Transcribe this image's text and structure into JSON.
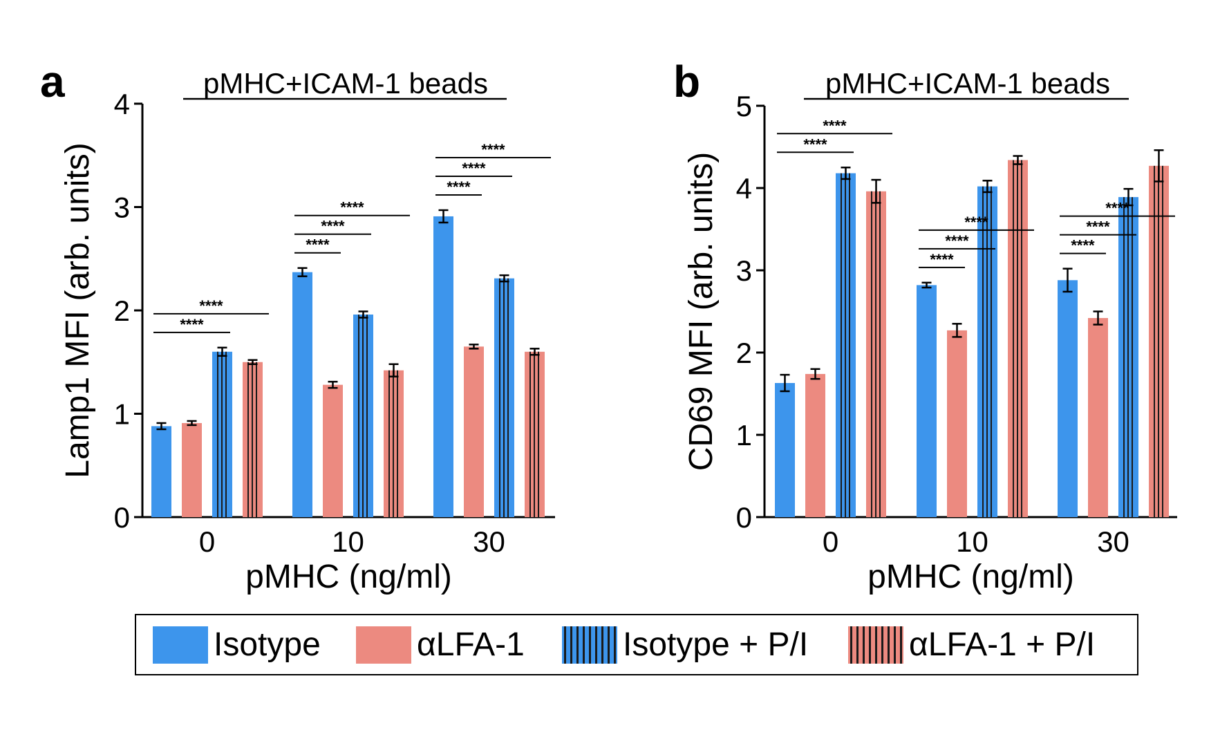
{
  "figure": {
    "colors": {
      "isotype": "#3d95ec",
      "alfa1": "#ec8a80",
      "stripe": "#1a1a1a",
      "axis": "#000000"
    },
    "legend": [
      {
        "label": "Isotype",
        "color": "#3d95ec",
        "hatched": false
      },
      {
        "label": "αLFA-1",
        "color": "#ec8a80",
        "hatched": false
      },
      {
        "label": "Isotype + P/I",
        "color": "#3d95ec",
        "hatched": true
      },
      {
        "label": "αLFA-1 + P/I",
        "color": "#ec8a80",
        "hatched": true
      }
    ]
  },
  "chart_data": [
    {
      "type": "bar",
      "panel_letter": "a",
      "title": "pMHC+ICAM-1 beads",
      "xlabel": "pMHC (ng/ml)",
      "ylabel": "Lamp1 MFI (arb. units)",
      "ylim": [
        0,
        4
      ],
      "yticks": [
        "0",
        "1",
        "2",
        "3",
        "4"
      ],
      "categories": [
        "0",
        "10",
        "30"
      ],
      "series": [
        {
          "name": "Isotype",
          "values": [
            0.88,
            2.37,
            2.91
          ],
          "errors": [
            0.03,
            0.04,
            0.06
          ]
        },
        {
          "name": "αLFA-1",
          "values": [
            0.91,
            1.28,
            1.65
          ],
          "errors": [
            0.02,
            0.03,
            0.02
          ]
        },
        {
          "name": "Isotype + P/I",
          "values": [
            1.6,
            1.96,
            2.31
          ],
          "errors": [
            0.04,
            0.03,
            0.03
          ]
        },
        {
          "name": "αLFA-1 + P/I",
          "values": [
            1.5,
            1.42,
            1.6
          ],
          "errors": [
            0.02,
            0.06,
            0.03
          ]
        }
      ],
      "significance": [
        {
          "category": "0",
          "from": "Isotype",
          "to": "Isotype + P/I",
          "label": "****"
        },
        {
          "category": "0",
          "from": "Isotype",
          "to": "αLFA-1 + P/I",
          "label": "****"
        },
        {
          "category": "10",
          "from": "Isotype",
          "to": "αLFA-1",
          "label": "****"
        },
        {
          "category": "10",
          "from": "Isotype",
          "to": "Isotype + P/I",
          "label": "****"
        },
        {
          "category": "10",
          "from": "Isotype",
          "to": "αLFA-1 + P/I",
          "label": "****"
        },
        {
          "category": "30",
          "from": "Isotype",
          "to": "αLFA-1",
          "label": "****"
        },
        {
          "category": "30",
          "from": "Isotype",
          "to": "Isotype + P/I",
          "label": "****"
        },
        {
          "category": "30",
          "from": "Isotype",
          "to": "αLFA-1 + P/I",
          "label": "****"
        }
      ]
    },
    {
      "type": "bar",
      "panel_letter": "b",
      "title": "pMHC+ICAM-1 beads",
      "xlabel": "pMHC (ng/ml)",
      "ylabel": "CD69 MFI (arb. units)",
      "ylim": [
        0,
        5
      ],
      "yticks": [
        "0",
        "1",
        "2",
        "3",
        "4",
        "5"
      ],
      "categories": [
        "0",
        "10",
        "30"
      ],
      "series": [
        {
          "name": "Isotype",
          "values": [
            1.63,
            2.82,
            2.88
          ],
          "errors": [
            0.1,
            0.03,
            0.14
          ]
        },
        {
          "name": "αLFA-1",
          "values": [
            1.74,
            2.27,
            2.42
          ],
          "errors": [
            0.06,
            0.08,
            0.08
          ]
        },
        {
          "name": "Isotype + P/I",
          "values": [
            4.18,
            4.02,
            3.89
          ],
          "errors": [
            0.07,
            0.07,
            0.1
          ]
        },
        {
          "name": "αLFA-1 + P/I",
          "values": [
            3.96,
            4.34,
            4.27
          ],
          "errors": [
            0.14,
            0.05,
            0.19
          ]
        }
      ],
      "significance": [
        {
          "category": "0",
          "from": "Isotype",
          "to": "Isotype + P/I",
          "label": "****"
        },
        {
          "category": "0",
          "from": "Isotype",
          "to": "αLFA-1 + P/I",
          "label": "****"
        },
        {
          "category": "10",
          "from": "Isotype",
          "to": "αLFA-1",
          "label": "****"
        },
        {
          "category": "10",
          "from": "Isotype",
          "to": "Isotype + P/I",
          "label": "****"
        },
        {
          "category": "10",
          "from": "Isotype",
          "to": "αLFA-1 + P/I",
          "label": "****"
        },
        {
          "category": "30",
          "from": "Isotype",
          "to": "αLFA-1",
          "label": "****"
        },
        {
          "category": "30",
          "from": "Isotype",
          "to": "Isotype + P/I",
          "label": "****"
        },
        {
          "category": "30",
          "from": "Isotype",
          "to": "αLFA-1 + P/I",
          "label": "****"
        }
      ]
    }
  ]
}
